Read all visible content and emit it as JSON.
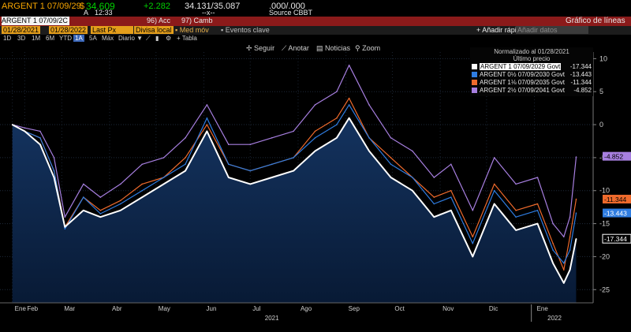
{
  "quote": {
    "ticker": "ARGENT 1 07/09/29",
    "currency_symbol": "$",
    "price": "34.609",
    "change": "+2.282",
    "bid_ask": "34.131/35.087",
    "yield": ".000/.000",
    "time_prefix": "A",
    "time": "12:33",
    "x_field": "--x--",
    "source": "Source CBBT"
  },
  "function_bar": {
    "security": "ARGENT 1 07/09/2C",
    "menu_acc": "96) Acc",
    "menu_camb": "97) Camb",
    "title": "Gráfico de líneas"
  },
  "params": {
    "date_from": "01/28/2021",
    "date_to": "01/28/2022",
    "field": "Last Px",
    "currency": "Divisa local",
    "moving_avg": "Med móv",
    "key_events": "Eventos clave",
    "add_quick": "+ Añadir rápid",
    "add_data_placeholder": "Añadir datos"
  },
  "periods": {
    "items": [
      "1D",
      "3D",
      "1M",
      "6M",
      "YTD",
      "1A",
      "5A",
      "Máx",
      "Diario ▼"
    ],
    "selected": "1A",
    "table_label": "Tabla"
  },
  "toolbar": {
    "follow": "Seguir",
    "annotate": "Anotar",
    "news": "Noticias",
    "zoom": "Zoom"
  },
  "legend": {
    "title": "Normalizado al 01/28/2021",
    "subtitle": "Último precio",
    "entries": [
      {
        "name": "ARGENT 1 07/09/2029 Govt",
        "value": "-17.344",
        "color": "#ffffff"
      },
      {
        "name": "ARGENT 0½ 07/09/2030 Govt",
        "value": "-13.443",
        "color": "#2f7de1"
      },
      {
        "name": "ARGENT 1⅛ 07/09/2035 Govt",
        "value": "-11.344",
        "color": "#ee6a2c"
      },
      {
        "name": "ARGENT 2½ 07/09/2041 Govt",
        "value": "-4.852",
        "color": "#a77fe0"
      }
    ]
  },
  "chart_data": {
    "type": "line",
    "title": "",
    "xlabel": "",
    "ylabel": "",
    "ylim": [
      -27,
      11
    ],
    "yticks": [
      10,
      5,
      0,
      -5,
      -10,
      -15,
      -20,
      -25
    ],
    "xticks": [
      "Ene",
      "Feb",
      "Mar",
      "Abr",
      "May",
      "Jun",
      "Jul",
      "Ago",
      "Sep",
      "Oct",
      "Nov",
      "Dic",
      "Ene"
    ],
    "year_labels": [
      "2021",
      "2022"
    ],
    "last_value_labels": [
      "-4.852",
      "-11.344",
      "-13.443",
      "-17.344"
    ],
    "x": [
      "2021-01-28",
      "2021-02-05",
      "2021-02-15",
      "2021-02-24",
      "2021-03-03",
      "2021-03-15",
      "2021-03-26",
      "2021-04-08",
      "2021-04-22",
      "2021-05-06",
      "2021-05-20",
      "2021-06-03",
      "2021-06-17",
      "2021-07-01",
      "2021-07-15",
      "2021-07-29",
      "2021-08-12",
      "2021-08-26",
      "2021-09-03",
      "2021-09-16",
      "2021-09-30",
      "2021-10-14",
      "2021-10-28",
      "2021-11-08",
      "2021-11-22",
      "2021-12-06",
      "2021-12-20",
      "2022-01-03",
      "2022-01-13",
      "2022-01-20",
      "2022-01-24",
      "2022-01-28"
    ],
    "series": [
      {
        "name": "ARGENT 1 07/09/2029 Govt",
        "color": "#ffffff",
        "values": [
          0,
          -1,
          -3,
          -8,
          -15.5,
          -13,
          -14,
          -13,
          -11,
          -9,
          -7,
          -1,
          -8,
          -9,
          -8,
          -7,
          -4,
          -2,
          1,
          -4,
          -8,
          -10,
          -14,
          -13,
          -20,
          -12,
          -16,
          -15,
          -21,
          -24,
          -22,
          -17.3
        ]
      },
      {
        "name": "ARGENT 0½ 07/09/2030 Govt",
        "color": "#2f7de1",
        "values": [
          0,
          -1,
          -2,
          -7,
          -15.8,
          -11,
          -13.5,
          -12,
          -10,
          -8,
          -6,
          1,
          -6,
          -7,
          -6,
          -5,
          -2,
          0,
          3,
          -2,
          -6,
          -8,
          -12,
          -11,
          -18,
          -10,
          -14,
          -13,
          -19,
          -21,
          -19,
          -13.4
        ]
      },
      {
        "name": "ARGENT 1⅛ 07/09/2035 Govt",
        "color": "#ee6a2c",
        "values": [
          0,
          -1,
          -2,
          -7,
          -15.5,
          -11,
          -13,
          -11.5,
          -9,
          -8,
          -5,
          0,
          -6,
          -7,
          -6,
          -5,
          -1,
          1,
          4,
          -2,
          -5,
          -8,
          -11,
          -10,
          -17,
          -9,
          -13,
          -12,
          -18,
          -22,
          -17,
          -11.3
        ]
      },
      {
        "name": "ARGENT 2½ 07/09/2041 Govt",
        "color": "#a77fe0",
        "values": [
          0,
          -0.5,
          -1,
          -5,
          -14,
          -9,
          -11,
          -9,
          -6,
          -5,
          -2,
          3,
          -3,
          -3,
          -2,
          -1,
          3,
          5,
          9,
          3,
          -2,
          -4,
          -8,
          -6,
          -13,
          -5,
          -9,
          -8,
          -15,
          -17,
          -14,
          -4.9
        ]
      }
    ]
  }
}
